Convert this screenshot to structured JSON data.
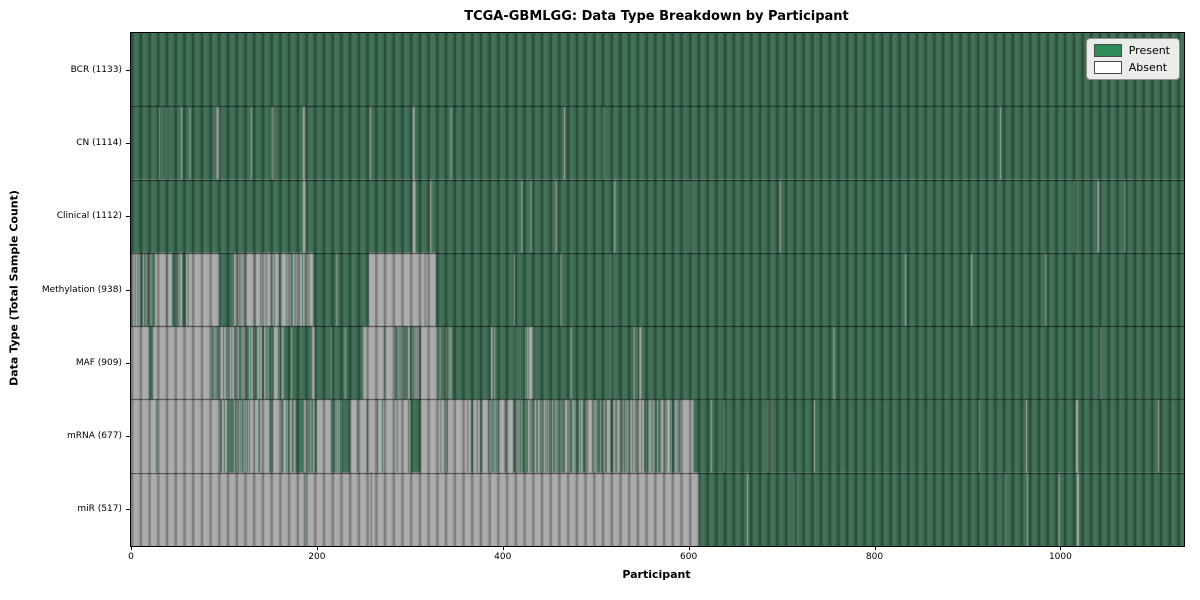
{
  "title": "TCGA-GBMLGG: Data Type Breakdown by Participant",
  "xlabel": "Participant",
  "ylabel": "Data Type (Total Sample Count)",
  "legend": {
    "present_label": "Present",
    "absent_label": "Absent"
  },
  "colors": {
    "present": "#3b6b51",
    "absent": "#a9a9a9",
    "legend_present": "#2e8b57",
    "legend_absent": "#ffffff"
  },
  "chart_data": {
    "type": "heatmap",
    "title": "TCGA-GBMLGG: Data Type Breakdown by Participant",
    "xlabel": "Participant",
    "ylabel": "Data Type (Total Sample Count)",
    "legend_entries": [
      "Present",
      "Absent"
    ],
    "legend_position": "upper right",
    "total_participants": 1133,
    "x_max": 1133,
    "x_ticks": [
      0,
      200,
      400,
      600,
      800,
      1000
    ],
    "rows": [
      {
        "name": "BCR",
        "count": 1133,
        "label": "BCR (1133)",
        "segments": [
          [
            0,
            1133,
            1
          ]
        ]
      },
      {
        "name": "CN",
        "count": 1114,
        "label": "CN (1114)",
        "segments": [
          [
            0,
            30,
            1
          ],
          [
            30,
            31,
            0
          ],
          [
            31,
            38,
            1
          ],
          [
            38,
            39,
            0
          ],
          [
            39,
            54,
            1
          ],
          [
            54,
            55,
            0
          ],
          [
            55,
            63,
            1
          ],
          [
            63,
            64,
            0
          ],
          [
            64,
            92,
            1
          ],
          [
            92,
            95,
            0
          ],
          [
            95,
            129,
            1
          ],
          [
            129,
            130,
            0
          ],
          [
            130,
            151,
            1
          ],
          [
            151,
            153,
            0
          ],
          [
            153,
            185,
            1
          ],
          [
            185,
            187,
            0
          ],
          [
            187,
            257,
            1
          ],
          [
            257,
            258,
            0
          ],
          [
            258,
            303,
            1
          ],
          [
            303,
            305,
            0
          ],
          [
            305,
            344,
            1
          ],
          [
            344,
            345,
            0
          ],
          [
            345,
            466,
            1
          ],
          [
            466,
            467,
            0
          ],
          [
            467,
            508,
            1
          ],
          [
            508,
            509,
            0
          ],
          [
            509,
            935,
            1
          ],
          [
            935,
            936,
            0
          ],
          [
            936,
            1133,
            1
          ]
        ]
      },
      {
        "name": "Clinical",
        "count": 1112,
        "label": "Clinical (1112)",
        "segments": [
          [
            0,
            185,
            1
          ],
          [
            185,
            188,
            0
          ],
          [
            188,
            303,
            1
          ],
          [
            303,
            306,
            0
          ],
          [
            306,
            322,
            1
          ],
          [
            322,
            323,
            0
          ],
          [
            323,
            420,
            1
          ],
          [
            420,
            421,
            0
          ],
          [
            421,
            430,
            1
          ],
          [
            430,
            431,
            0
          ],
          [
            431,
            457,
            1
          ],
          [
            457,
            458,
            0
          ],
          [
            458,
            520,
            1
          ],
          [
            520,
            521,
            0
          ],
          [
            521,
            601,
            1
          ],
          [
            601,
            602,
            0
          ],
          [
            602,
            698,
            1
          ],
          [
            698,
            699,
            0
          ],
          [
            699,
            1014,
            1
          ],
          [
            1014,
            1015,
            0
          ],
          [
            1015,
            1040,
            1
          ],
          [
            1040,
            1042,
            0
          ],
          [
            1042,
            1069,
            1
          ],
          [
            1069,
            1070,
            0
          ],
          [
            1070,
            1133,
            1
          ]
        ]
      },
      {
        "name": "Methylation",
        "count": 938,
        "label": "Methylation (938)",
        "segments": [
          [
            0,
            62,
            0.5
          ],
          [
            62,
            95,
            0
          ],
          [
            95,
            109,
            1
          ],
          [
            109,
            126,
            0.4
          ],
          [
            126,
            196,
            0.25
          ],
          [
            196,
            256,
            0.95
          ],
          [
            256,
            316,
            0
          ],
          [
            316,
            317,
            1
          ],
          [
            317,
            328,
            0
          ],
          [
            328,
            412,
            1
          ],
          [
            412,
            413,
            0
          ],
          [
            413,
            462,
            1
          ],
          [
            462,
            463,
            0
          ],
          [
            463,
            516,
            1
          ],
          [
            516,
            517,
            0
          ],
          [
            517,
            833,
            1
          ],
          [
            833,
            834,
            0
          ],
          [
            834,
            904,
            1
          ],
          [
            904,
            905,
            0
          ],
          [
            905,
            984,
            1
          ],
          [
            984,
            985,
            0
          ],
          [
            985,
            1133,
            1
          ]
        ]
      },
      {
        "name": "MAF",
        "count": 909,
        "label": "MAF (909)",
        "segments": [
          [
            0,
            20,
            0
          ],
          [
            20,
            24,
            1
          ],
          [
            24,
            86,
            0
          ],
          [
            86,
            118,
            0.5
          ],
          [
            118,
            165,
            0.65
          ],
          [
            165,
            172,
            1
          ],
          [
            172,
            173,
            0
          ],
          [
            173,
            195,
            1
          ],
          [
            195,
            198,
            0
          ],
          [
            198,
            215,
            1
          ],
          [
            215,
            216,
            0
          ],
          [
            216,
            230,
            1
          ],
          [
            230,
            231,
            0
          ],
          [
            231,
            250,
            1
          ],
          [
            250,
            272,
            0
          ],
          [
            272,
            273,
            1
          ],
          [
            273,
            282,
            0
          ],
          [
            282,
            312,
            0.7
          ],
          [
            312,
            330,
            0
          ],
          [
            330,
            345,
            0.8
          ],
          [
            345,
            387,
            1
          ],
          [
            387,
            388,
            0
          ],
          [
            388,
            395,
            0.6
          ],
          [
            395,
            414,
            1
          ],
          [
            414,
            415,
            0
          ],
          [
            415,
            423,
            1
          ],
          [
            423,
            433,
            0.3
          ],
          [
            433,
            473,
            1
          ],
          [
            473,
            474,
            0
          ],
          [
            474,
            516,
            1
          ],
          [
            516,
            517,
            0
          ],
          [
            517,
            541,
            1
          ],
          [
            541,
            552,
            0.5
          ],
          [
            552,
            756,
            1
          ],
          [
            756,
            757,
            0
          ],
          [
            757,
            1043,
            1
          ],
          [
            1043,
            1044,
            0
          ],
          [
            1044,
            1133,
            1
          ]
        ]
      },
      {
        "name": "mRNA",
        "count": 677,
        "label": "mRNA (677)",
        "segments": [
          [
            0,
            27,
            0
          ],
          [
            27,
            28,
            1
          ],
          [
            28,
            90,
            0
          ],
          [
            90,
            118,
            0.45
          ],
          [
            118,
            180,
            0.35
          ],
          [
            180,
            200,
            0.6
          ],
          [
            200,
            215,
            0
          ],
          [
            215,
            236,
            0.7
          ],
          [
            236,
            301,
            0.1
          ],
          [
            301,
            312,
            1
          ],
          [
            312,
            333,
            0
          ],
          [
            333,
            334,
            1
          ],
          [
            334,
            376,
            0.15
          ],
          [
            376,
            591,
            0.45
          ],
          [
            591,
            605,
            0
          ],
          [
            605,
            624,
            1
          ],
          [
            624,
            625,
            0
          ],
          [
            625,
            638,
            1
          ],
          [
            638,
            639,
            0
          ],
          [
            639,
            685,
            1
          ],
          [
            685,
            686,
            0
          ],
          [
            686,
            735,
            1
          ],
          [
            735,
            736,
            0
          ],
          [
            736,
            912,
            1
          ],
          [
            912,
            913,
            0
          ],
          [
            913,
            963,
            1
          ],
          [
            963,
            964,
            0
          ],
          [
            964,
            1017,
            1
          ],
          [
            1017,
            1019,
            0
          ],
          [
            1019,
            1105,
            1
          ],
          [
            1105,
            1106,
            0
          ],
          [
            1106,
            1133,
            1
          ]
        ]
      },
      {
        "name": "miR",
        "count": 517,
        "label": "miR (517)",
        "segments": [
          [
            0,
            186,
            0
          ],
          [
            186,
            187,
            1
          ],
          [
            187,
            258,
            0
          ],
          [
            258,
            259,
            1
          ],
          [
            259,
            611,
            0
          ],
          [
            611,
            663,
            1
          ],
          [
            663,
            664,
            0
          ],
          [
            664,
            713,
            1
          ],
          [
            713,
            714,
            0
          ],
          [
            714,
            940,
            1
          ],
          [
            940,
            941,
            0
          ],
          [
            941,
            964,
            1
          ],
          [
            964,
            965,
            0
          ],
          [
            965,
            998,
            1
          ],
          [
            998,
            999,
            0
          ],
          [
            999,
            1018,
            1
          ],
          [
            1018,
            1020,
            0
          ],
          [
            1020,
            1133,
            1
          ]
        ]
      }
    ]
  }
}
